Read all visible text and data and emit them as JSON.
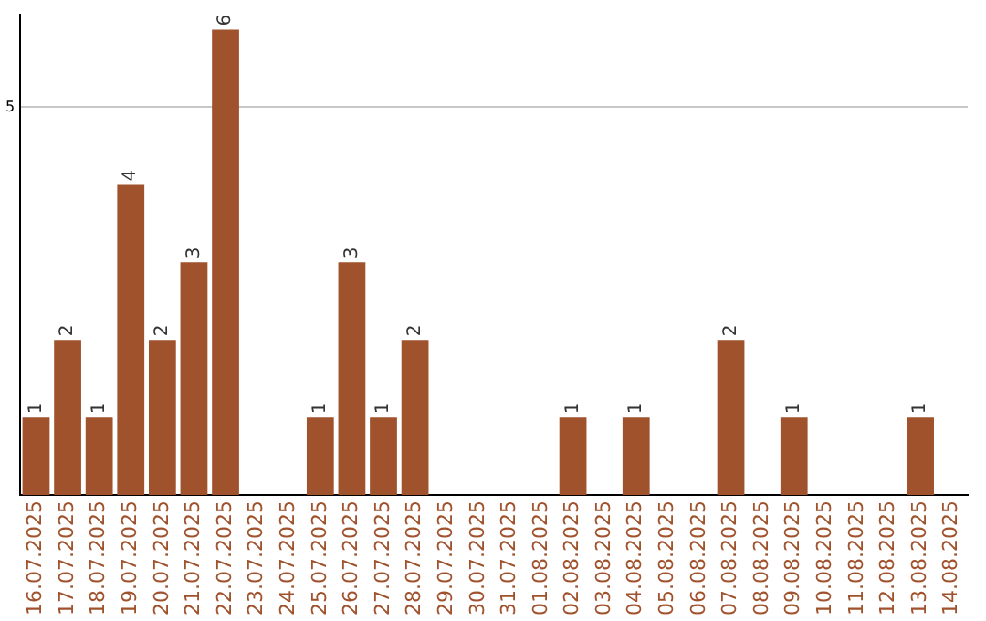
{
  "chart_data": {
    "type": "bar",
    "categories": [
      "16.07.2025",
      "17.07.2025",
      "18.07.2025",
      "19.07.2025",
      "20.07.2025",
      "21.07.2025",
      "22.07.2025",
      "23.07.2025",
      "24.07.2025",
      "25.07.2025",
      "26.07.2025",
      "27.07.2025",
      "28.07.2025",
      "29.07.2025",
      "30.07.2025",
      "31.07.2025",
      "01.08.2025",
      "02.08.2025",
      "03.08.2025",
      "04.08.2025",
      "05.08.2025",
      "06.08.2025",
      "07.08.2025",
      "08.08.2025",
      "09.08.2025",
      "10.08.2025",
      "11.08.2025",
      "12.08.2025",
      "13.08.2025",
      "14.08.2025"
    ],
    "values": [
      1,
      2,
      1,
      4,
      2,
      3,
      6,
      0,
      0,
      1,
      3,
      1,
      2,
      0,
      0,
      0,
      0,
      1,
      0,
      1,
      0,
      0,
      2,
      0,
      1,
      0,
      0,
      0,
      1,
      0
    ],
    "value_labels": [
      "1",
      "2",
      "1",
      "4",
      "2",
      "3",
      "6",
      null,
      null,
      "1",
      "3",
      "1",
      "2",
      null,
      null,
      null,
      null,
      "1",
      null,
      "1",
      null,
      null,
      "2",
      null,
      "1",
      null,
      null,
      null,
      "1",
      null
    ],
    "color": "#a0522d",
    "ylim": [
      0,
      6.2
    ],
    "yticks": [
      5
    ],
    "grid": "y"
  }
}
